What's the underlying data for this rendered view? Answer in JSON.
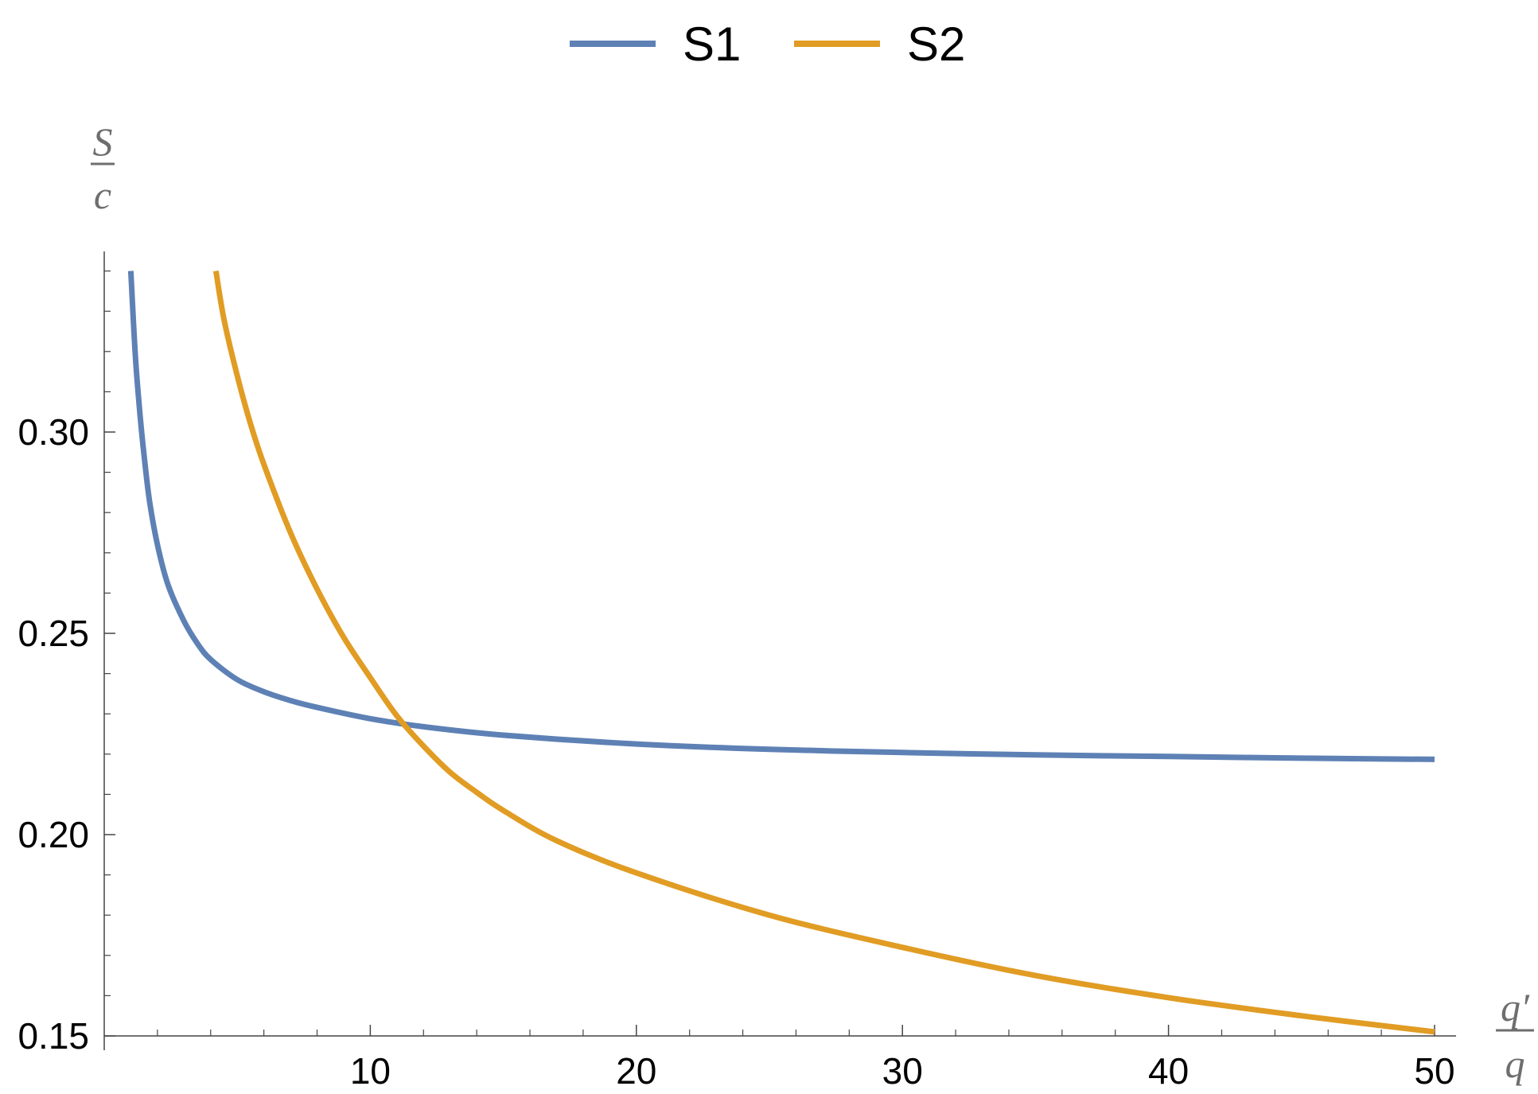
{
  "chart_data": {
    "type": "line",
    "title": "",
    "legend": {
      "position": "top-center",
      "entries": [
        {
          "name": "S1",
          "color": "#5e81b5"
        },
        {
          "name": "S2",
          "color": "#e19c24"
        }
      ]
    },
    "xlabel": {
      "numerator": "q′",
      "denominator": "q"
    },
    "ylabel": {
      "numerator": "S",
      "denominator": "c"
    },
    "xlim": [
      0,
      50
    ],
    "ylim": [
      0.15,
      0.34
    ],
    "x_ticks": [
      10,
      20,
      30,
      40,
      50
    ],
    "x_tick_labels": [
      "10",
      "20",
      "30",
      "40",
      "50"
    ],
    "y_ticks": [
      0.15,
      0.2,
      0.25,
      0.3
    ],
    "y_tick_labels": [
      "0.15",
      "0.20",
      "0.25",
      "0.30"
    ],
    "grid": false,
    "series": [
      {
        "name": "S1",
        "color": "#5e81b5",
        "x": [
          1,
          1.1,
          1.2,
          1.35,
          1.5,
          1.7,
          2,
          2.4,
          3,
          3.5,
          4,
          5,
          6,
          7,
          8,
          10,
          12,
          15,
          20,
          25,
          30,
          35,
          40,
          45,
          50
        ],
        "y": [
          0.34,
          0.327,
          0.316,
          0.304,
          0.294,
          0.283,
          0.272,
          0.262,
          0.253,
          0.2475,
          0.2435,
          0.2385,
          0.2355,
          0.2333,
          0.2316,
          0.2288,
          0.2268,
          0.2247,
          0.2225,
          0.2212,
          0.2204,
          0.2198,
          0.2194,
          0.219,
          0.2187
        ]
      },
      {
        "name": "S2",
        "color": "#e19c24",
        "x": [
          4.2,
          4.5,
          5,
          5.5,
          6,
          7,
          8,
          9,
          10,
          11,
          12,
          13,
          14,
          15,
          17,
          20,
          25,
          30,
          35,
          40,
          45,
          50
        ],
        "y": [
          0.34,
          0.328,
          0.314,
          0.302,
          0.292,
          0.275,
          0.261,
          0.249,
          0.239,
          0.2295,
          0.222,
          0.2155,
          0.2105,
          0.206,
          0.1985,
          0.1905,
          0.18,
          0.172,
          0.165,
          0.1595,
          0.155,
          0.151
        ]
      }
    ]
  }
}
